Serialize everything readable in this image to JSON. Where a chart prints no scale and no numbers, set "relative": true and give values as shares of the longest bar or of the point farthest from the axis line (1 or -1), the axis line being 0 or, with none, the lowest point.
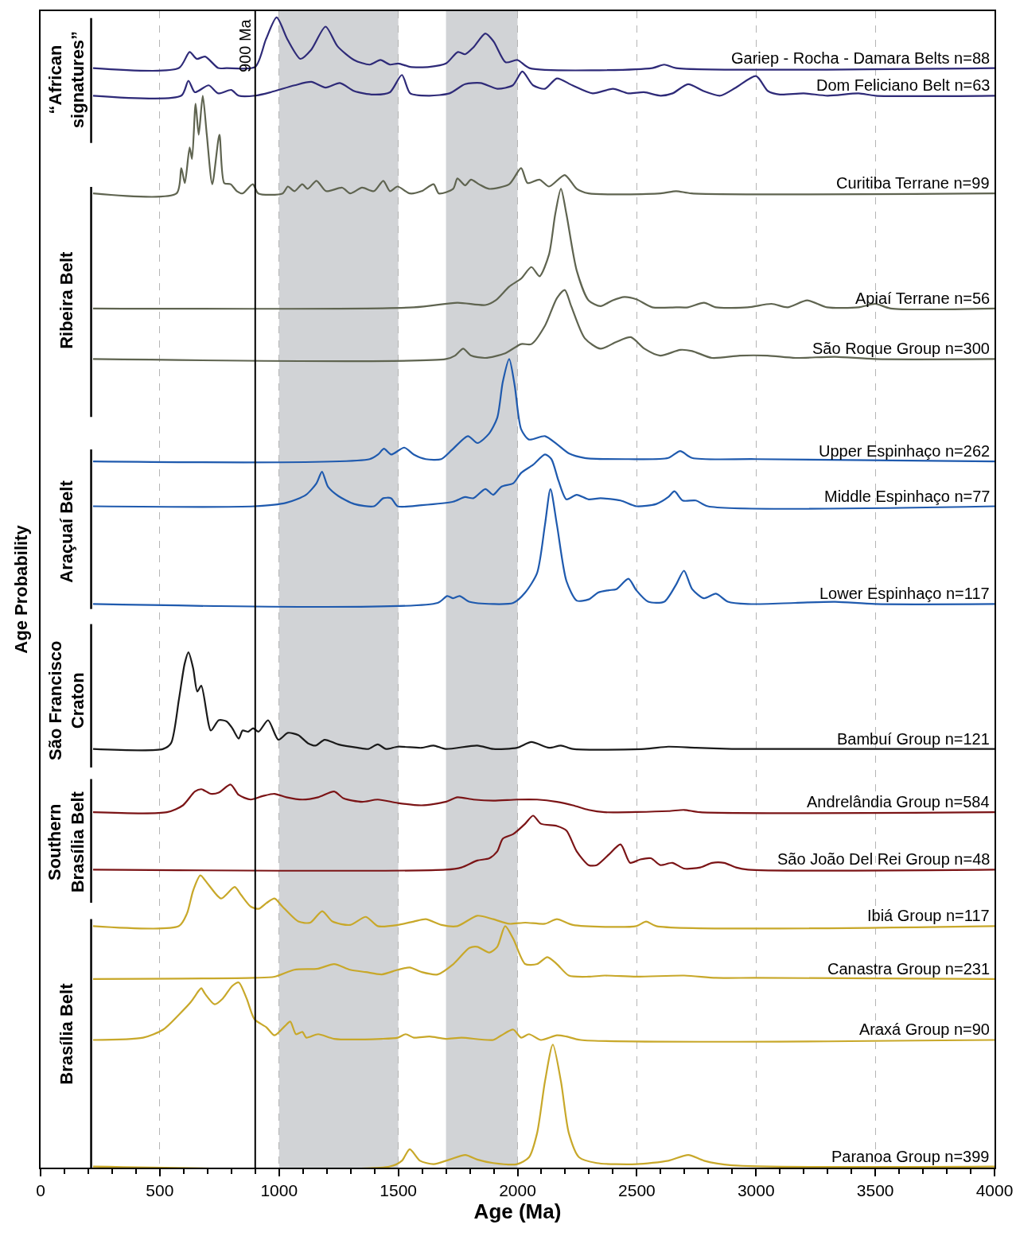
{
  "chart_data": {
    "type": "line",
    "relative": true,
    "xlabel": "Age (Ma)",
    "ylabel": "Age Probability",
    "xlim": [
      0,
      4000
    ],
    "xticks": [
      0,
      500,
      1000,
      1500,
      2000,
      2500,
      3000,
      3500,
      4000
    ],
    "grid": "x",
    "line_style": "solid",
    "ref_lines": [
      {
        "axis": "x",
        "value": 900,
        "label": "900 Ma",
        "color": "#000000"
      }
    ],
    "bands": [
      {
        "axis": "x",
        "from": 1000,
        "to": 1500,
        "color": "#d1d3d6"
      },
      {
        "axis": "x",
        "from": 1700,
        "to": 2000,
        "color": "#d1d3d6"
      }
    ],
    "annotations": [
      "“African\nsignatures”",
      "Ribeira Belt",
      "Araçuaí Belt",
      "São Francisco\nCraton",
      "Southern\nBrasília Belt",
      "Brasília Belt"
    ],
    "series": [
      {
        "name": "Gariep - Rocha - Damara Belts n=88",
        "color": "#2e2a78",
        "x": [
          220,
          580,
          625,
          655,
          690,
          745,
          780,
          900,
          945,
          990,
          1035,
          1090,
          1135,
          1195,
          1245,
          1315,
          1380,
          1425,
          1465,
          1500,
          1550,
          1630,
          1700,
          1750,
          1780,
          1815,
          1865,
          1900,
          1950,
          2000,
          2050,
          2565,
          2615,
          2665,
          4000
        ],
        "values": [
          0.956,
          0.956,
          0.97,
          0.964,
          0.966,
          0.956,
          0.956,
          0.957,
          0.981,
          1.0,
          0.981,
          0.964,
          0.972,
          0.992,
          0.975,
          0.963,
          0.959,
          0.963,
          0.959,
          0.96,
          0.957,
          0.957,
          0.96,
          0.97,
          0.968,
          0.974,
          0.986,
          0.979,
          0.961,
          0.963,
          0.956,
          0.956,
          0.959,
          0.956,
          0.956
        ]
      },
      {
        "name": "Dom Feliciano Belt n=63",
        "color": "#2e2a78",
        "x": [
          220,
          590,
          620,
          647,
          705,
          745,
          800,
          830,
          900,
          965,
          1065,
          1135,
          1195,
          1255,
          1315,
          1395,
          1465,
          1515,
          1550,
          1630,
          1715,
          1780,
          1845,
          1915,
          1980,
          2020,
          2065,
          2115,
          2165,
          2230,
          2315,
          2400,
          2465,
          2530,
          2600,
          2650,
          2715,
          2780,
          2850,
          2915,
          3000,
          3050,
          3100,
          3200,
          3300,
          3430,
          3500,
          4000
        ],
        "values": [
          0.932,
          0.932,
          0.945,
          0.935,
          0.941,
          0.934,
          0.937,
          0.932,
          0.932,
          0.935,
          0.941,
          0.944,
          0.939,
          0.943,
          0.936,
          0.933,
          0.935,
          0.95,
          0.934,
          0.932,
          0.934,
          0.942,
          0.943,
          0.938,
          0.941,
          0.953,
          0.941,
          0.938,
          0.947,
          0.941,
          0.934,
          0.938,
          0.934,
          0.935,
          0.932,
          0.934,
          0.942,
          0.936,
          0.932,
          0.939,
          0.949,
          0.936,
          0.933,
          0.934,
          0.932,
          0.934,
          0.932,
          0.932
        ]
      },
      {
        "name": "Curitiba Terrane n=99",
        "color": "#5f6450",
        "x": [
          220,
          570,
          590,
          605,
          625,
          635,
          650,
          663,
          680,
          697,
          720,
          750,
          770,
          797,
          823,
          847,
          890,
          913,
          1015,
          1037,
          1065,
          1097,
          1120,
          1157,
          1197,
          1265,
          1298,
          1348,
          1398,
          1437,
          1465,
          1497,
          1548,
          1598,
          1648,
          1670,
          1730,
          1748,
          1780,
          1805,
          1838,
          1880,
          1965,
          2015,
          2042,
          2092,
          2132,
          2198,
          2248,
          2298,
          2600,
          2665,
          2730,
          4000
        ],
        "values": [
          0.847,
          0.847,
          0.869,
          0.856,
          0.887,
          0.877,
          0.925,
          0.898,
          0.932,
          0.898,
          0.855,
          0.898,
          0.856,
          0.855,
          0.849,
          0.847,
          0.855,
          0.847,
          0.847,
          0.853,
          0.849,
          0.855,
          0.851,
          0.858,
          0.849,
          0.852,
          0.847,
          0.852,
          0.849,
          0.858,
          0.849,
          0.853,
          0.847,
          0.849,
          0.855,
          0.847,
          0.851,
          0.86,
          0.854,
          0.859,
          0.855,
          0.851,
          0.855,
          0.869,
          0.856,
          0.859,
          0.853,
          0.863,
          0.851,
          0.847,
          0.847,
          0.849,
          0.847,
          0.847
        ]
      },
      {
        "name": "Apiaí Terrane n=56",
        "color": "#5f6450",
        "x": [
          220,
          1565,
          1748,
          1865,
          1908,
          1965,
          2015,
          2058,
          2092,
          2132,
          2158,
          2182,
          2205,
          2248,
          2298,
          2348,
          2398,
          2448,
          2498,
          2565,
          2665,
          2715,
          2782,
          2832,
          2965,
          3065,
          3132,
          3215,
          3298,
          3430,
          3500,
          3565,
          4000
        ],
        "values": [
          0.747,
          0.748,
          0.752,
          0.75,
          0.754,
          0.766,
          0.773,
          0.783,
          0.775,
          0.794,
          0.829,
          0.851,
          0.829,
          0.78,
          0.754,
          0.749,
          0.754,
          0.757,
          0.755,
          0.748,
          0.748,
          0.748,
          0.752,
          0.748,
          0.748,
          0.751,
          0.748,
          0.754,
          0.748,
          0.748,
          0.751,
          0.747,
          0.747
        ]
      },
      {
        "name": "São Roque Group n=300",
        "color": "#5f6450",
        "x": [
          220,
          1700,
          1738,
          1772,
          1805,
          1865,
          1948,
          2015,
          2058,
          2115,
          2165,
          2198,
          2225,
          2282,
          2348,
          2415,
          2475,
          2532,
          2598,
          2682,
          2732,
          2815,
          2932,
          3048,
          3165,
          3332,
          3500,
          4000
        ],
        "values": [
          0.703,
          0.703,
          0.706,
          0.712,
          0.706,
          0.704,
          0.708,
          0.716,
          0.716,
          0.732,
          0.756,
          0.763,
          0.749,
          0.721,
          0.712,
          0.718,
          0.722,
          0.712,
          0.706,
          0.711,
          0.71,
          0.704,
          0.706,
          0.706,
          0.704,
          0.705,
          0.703,
          0.703
        ]
      },
      {
        "name": "Upper Espinhaço n=262",
        "color": "#1f5aae",
        "x": [
          220,
          1380,
          1415,
          1440,
          1470,
          1525,
          1565,
          1615,
          1680,
          1725,
          1792,
          1832,
          1880,
          1915,
          1938,
          1965,
          1988,
          2015,
          2048,
          2115,
          2165,
          2215,
          2282,
          2465,
          2632,
          2682,
          2732,
          3000,
          4000
        ],
        "values": [
          0.614,
          0.616,
          0.62,
          0.625,
          0.62,
          0.626,
          0.62,
          0.616,
          0.616,
          0.624,
          0.636,
          0.63,
          0.638,
          0.652,
          0.683,
          0.703,
          0.68,
          0.642,
          0.633,
          0.636,
          0.629,
          0.621,
          0.617,
          0.616,
          0.617,
          0.623,
          0.617,
          0.616,
          0.614
        ]
      },
      {
        "name": "Middle Espinhaço n=77",
        "color": "#1f5aae",
        "x": [
          220,
          897,
          1030,
          1113,
          1157,
          1180,
          1205,
          1248,
          1315,
          1398,
          1437,
          1470,
          1497,
          1598,
          1730,
          1780,
          1815,
          1865,
          1898,
          1932,
          1982,
          2015,
          2065,
          2115,
          2142,
          2172,
          2205,
          2248,
          2298,
          2348,
          2432,
          2498,
          2582,
          2632,
          2658,
          2692,
          2748,
          2798,
          4000
        ],
        "values": [
          0.575,
          0.575,
          0.578,
          0.585,
          0.595,
          0.605,
          0.592,
          0.584,
          0.577,
          0.575,
          0.582,
          0.582,
          0.575,
          0.576,
          0.579,
          0.583,
          0.582,
          0.59,
          0.585,
          0.592,
          0.595,
          0.604,
          0.611,
          0.62,
          0.616,
          0.597,
          0.581,
          0.585,
          0.581,
          0.582,
          0.58,
          0.575,
          0.577,
          0.583,
          0.588,
          0.58,
          0.58,
          0.575,
          0.575
        ]
      },
      {
        "name": "Lower Espinhaço n=117",
        "color": "#1f5aae",
        "x": [
          220,
          1665,
          1705,
          1730,
          1757,
          1797,
          1898,
          1982,
          2032,
          2082,
          2115,
          2138,
          2165,
          2205,
          2248,
          2298,
          2338,
          2382,
          2415,
          2465,
          2498,
          2548,
          2615,
          2665,
          2698,
          2732,
          2782,
          2832,
          2882,
          2965,
          3165,
          3332,
          3500,
          4000
        ],
        "values": [
          0.49,
          0.491,
          0.497,
          0.495,
          0.497,
          0.492,
          0.49,
          0.491,
          0.5,
          0.517,
          0.559,
          0.59,
          0.559,
          0.51,
          0.493,
          0.494,
          0.5,
          0.502,
          0.503,
          0.512,
          0.502,
          0.492,
          0.492,
          0.507,
          0.519,
          0.503,
          0.495,
          0.499,
          0.492,
          0.49,
          0.491,
          0.492,
          0.49,
          0.49
        ]
      },
      {
        "name": "Bambuí Group n=121",
        "color": "#1a1a1a",
        "x": [
          220,
          514,
          547,
          580,
          604,
          620,
          640,
          657,
          674,
          714,
          747,
          780,
          804,
          831,
          847,
          871,
          891,
          914,
          954,
          997,
          1037,
          1081,
          1121,
          1154,
          1191,
          1248,
          1331,
          1374,
          1414,
          1448,
          1498,
          1598,
          1648,
          1698,
          1831,
          1898,
          1998,
          2058,
          2132,
          2182,
          2232,
          2532,
          2632,
          2749,
          2899,
          2949,
          4000
        ],
        "values": [
          0.364,
          0.364,
          0.369,
          0.407,
          0.438,
          0.448,
          0.434,
          0.414,
          0.419,
          0.38,
          0.389,
          0.388,
          0.382,
          0.373,
          0.38,
          0.379,
          0.382,
          0.379,
          0.389,
          0.372,
          0.378,
          0.376,
          0.369,
          0.367,
          0.372,
          0.368,
          0.365,
          0.364,
          0.368,
          0.364,
          0.366,
          0.365,
          0.367,
          0.364,
          0.367,
          0.364,
          0.365,
          0.37,
          0.365,
          0.367,
          0.364,
          0.364,
          0.366,
          0.365,
          0.364,
          0.364,
          0.364
        ]
      },
      {
        "name": "Andrelândia Group n=584",
        "color": "#7b1416",
        "x": [
          220,
          530,
          597,
          647,
          674,
          714,
          747,
          797,
          831,
          881,
          931,
          981,
          1031,
          1098,
          1164,
          1231,
          1271,
          1348,
          1414,
          1498,
          1598,
          1698,
          1748,
          1815,
          1898,
          1998,
          2082,
          2165,
          2232,
          2298,
          2365,
          2632,
          2699,
          2766,
          4000
        ],
        "values": [
          0.309,
          0.309,
          0.315,
          0.327,
          0.329,
          0.325,
          0.326,
          0.333,
          0.324,
          0.32,
          0.323,
          0.325,
          0.322,
          0.32,
          0.322,
          0.327,
          0.321,
          0.318,
          0.32,
          0.317,
          0.315,
          0.318,
          0.322,
          0.32,
          0.319,
          0.32,
          0.32,
          0.318,
          0.315,
          0.311,
          0.309,
          0.31,
          0.311,
          0.309,
          0.309
        ]
      },
      {
        "name": "São João Del Rei Group n=48",
        "color": "#7b1416",
        "x": [
          220,
          1698,
          1765,
          1831,
          1882,
          1915,
          1938,
          1982,
          2032,
          2065,
          2098,
          2165,
          2205,
          2248,
          2298,
          2332,
          2382,
          2432,
          2472,
          2515,
          2559,
          2599,
          2649,
          2699,
          2766,
          2816,
          2866,
          2916,
          2966,
          4000
        ],
        "values": [
          0.259,
          0.259,
          0.261,
          0.267,
          0.269,
          0.275,
          0.286,
          0.29,
          0.299,
          0.306,
          0.299,
          0.297,
          0.293,
          0.275,
          0.263,
          0.263,
          0.272,
          0.281,
          0.265,
          0.268,
          0.269,
          0.263,
          0.265,
          0.26,
          0.261,
          0.265,
          0.265,
          0.261,
          0.259,
          0.259
        ]
      },
      {
        "name": "Ibiá Group n=117",
        "color": "#c8a82a",
        "x": [
          220,
          580,
          614,
          640,
          670,
          704,
          757,
          814,
          841,
          881,
          914,
          947,
          981,
          1014,
          1081,
          1131,
          1181,
          1224,
          1298,
          1364,
          1414,
          1498,
          1565,
          1615,
          1681,
          1748,
          1831,
          1898,
          1965,
          2032,
          2115,
          2165,
          2232,
          2498,
          2539,
          2582,
          4000
        ],
        "values": [
          0.21,
          0.21,
          0.221,
          0.241,
          0.254,
          0.246,
          0.234,
          0.244,
          0.237,
          0.227,
          0.225,
          0.23,
          0.234,
          0.227,
          0.214,
          0.213,
          0.223,
          0.214,
          0.211,
          0.218,
          0.21,
          0.211,
          0.214,
          0.216,
          0.211,
          0.21,
          0.219,
          0.216,
          0.212,
          0.213,
          0.212,
          0.216,
          0.211,
          0.21,
          0.214,
          0.21,
          0.21
        ]
      },
      {
        "name": "Canastra Group n=231",
        "color": "#c8a82a",
        "x": [
          220,
          897,
          981,
          1064,
          1164,
          1231,
          1298,
          1364,
          1431,
          1498,
          1548,
          1598,
          1665,
          1731,
          1798,
          1831,
          1882,
          1915,
          1948,
          1982,
          2032,
          2082,
          2125,
          2165,
          2215,
          2298,
          2365,
          2498,
          2699,
          2832,
          3000,
          4000
        ],
        "values": [
          0.164,
          0.165,
          0.166,
          0.172,
          0.173,
          0.177,
          0.172,
          0.17,
          0.168,
          0.172,
          0.174,
          0.17,
          0.168,
          0.177,
          0.191,
          0.192,
          0.187,
          0.192,
          0.21,
          0.199,
          0.177,
          0.177,
          0.183,
          0.177,
          0.167,
          0.166,
          0.167,
          0.166,
          0.167,
          0.165,
          0.165,
          0.164
        ]
      },
      {
        "name": "Araxá Group n=90",
        "color": "#c8a82a",
        "x": [
          220,
          430,
          514,
          580,
          630,
          664,
          674,
          690,
          730,
          764,
          804,
          831,
          864,
          897,
          947,
          981,
          1024,
          1047,
          1071,
          1098,
          1114,
          1164,
          1231,
          1431,
          1498,
          1531,
          1565,
          1631,
          1698,
          1765,
          1898,
          1932,
          1982,
          2015,
          2048,
          2098,
          2165,
          2205,
          2265,
          4000
        ],
        "values": [
          0.111,
          0.113,
          0.12,
          0.133,
          0.144,
          0.154,
          0.156,
          0.151,
          0.142,
          0.147,
          0.158,
          0.161,
          0.147,
          0.129,
          0.122,
          0.115,
          0.123,
          0.127,
          0.116,
          0.118,
          0.113,
          0.116,
          0.112,
          0.112,
          0.113,
          0.116,
          0.113,
          0.114,
          0.112,
          0.113,
          0.111,
          0.115,
          0.12,
          0.113,
          0.116,
          0.111,
          0.115,
          0.114,
          0.111,
          0.111
        ]
      },
      {
        "name": "Paranoa Group n=399",
        "color": "#c8a82a",
        "x": [
          220,
          1465,
          1515,
          1548,
          1591,
          1648,
          1715,
          1781,
          1831,
          1898,
          1998,
          2048,
          2082,
          2115,
          2148,
          2182,
          2215,
          2258,
          2332,
          2498,
          2632,
          2716,
          2782,
          2899,
          4000
        ],
        "values": [
          0.001,
          0.001,
          0.006,
          0.016,
          0.006,
          0.003,
          0.007,
          0.011,
          0.007,
          0.004,
          0.003,
          0.009,
          0.03,
          0.075,
          0.107,
          0.075,
          0.03,
          0.009,
          0.004,
          0.003,
          0.006,
          0.011,
          0.006,
          0.002,
          0.001
        ]
      }
    ]
  }
}
